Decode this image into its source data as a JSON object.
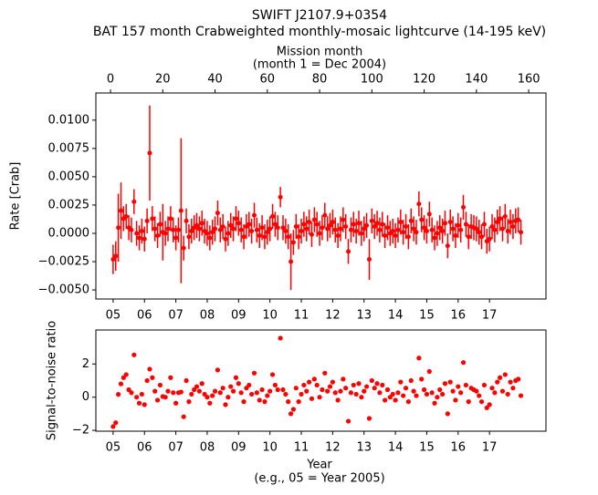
{
  "chart_data": [
    {
      "type": "errorbar",
      "title": [
        "SWIFT J2107.9+0354",
        "BAT 157 month Crabweighted monthly-mosaic lightcurve (14-195 keV)"
      ],
      "x2label": [
        "Mission month",
        "(month 1 = Dec 2004)"
      ],
      "ylabel": "Rate [Crab]",
      "color": "#ff0000",
      "x": [
        1,
        2,
        3,
        4,
        5,
        6,
        7,
        8,
        9,
        10,
        11,
        12,
        13,
        14,
        15,
        16,
        17,
        18,
        19,
        20,
        21,
        22,
        23,
        24,
        25,
        26,
        27,
        28,
        29,
        30,
        31,
        32,
        33,
        34,
        35,
        36,
        37,
        38,
        39,
        40,
        41,
        42,
        43,
        44,
        45,
        46,
        47,
        48,
        49,
        50,
        51,
        52,
        53,
        54,
        55,
        56,
        57,
        58,
        59,
        60,
        61,
        62,
        63,
        64,
        65,
        66,
        67,
        68,
        69,
        70,
        71,
        72,
        73,
        74,
        75,
        76,
        77,
        78,
        79,
        80,
        81,
        82,
        83,
        84,
        85,
        86,
        87,
        88,
        89,
        90,
        91,
        92,
        93,
        94,
        95,
        96,
        97,
        98,
        99,
        100,
        101,
        102,
        103,
        104,
        105,
        106,
        107,
        108,
        109,
        110,
        111,
        112,
        113,
        114,
        115,
        116,
        117,
        118,
        119,
        120,
        121,
        122,
        123,
        124,
        125,
        126,
        127,
        128,
        129,
        130,
        131,
        132,
        133,
        134,
        135,
        136,
        137,
        138,
        139,
        140,
        141,
        142,
        143,
        144,
        145,
        146,
        147,
        148,
        149,
        150,
        151,
        152,
        153,
        154,
        155,
        156,
        157
      ],
      "values": [
        -0.0023,
        -0.002,
        0.0005,
        0.002,
        0.0013,
        0.0015,
        0.0005,
        0.0003,
        0.0028,
        0.0,
        -0.0004,
        0.0002,
        -0.0005,
        0.0011,
        0.0071,
        0.0013,
        0.0004,
        -0.0002,
        0.0008,
        0.0001,
        0.0,
        0.0004,
        0.0013,
        0.0003,
        -0.0004,
        0.0003,
        0.002,
        -0.0013,
        0.0011,
        -0.0003,
        0.0002,
        0.0005,
        0.0007,
        0.0004,
        0.0009,
        0.0002,
        0.0,
        -0.0004,
        0.0001,
        0.0004,
        0.0018,
        0.0003,
        0.0006,
        -0.0005,
        0.0,
        0.0007,
        0.0004,
        0.0013,
        0.0009,
        0.0003,
        -0.0003,
        0.0006,
        0.0008,
        0.0002,
        0.0016,
        0.0003,
        -0.0002,
        0.0005,
        -0.0003,
        0.0001,
        0.0004,
        0.0015,
        0.0008,
        0.0005,
        0.0032,
        0.0005,
        0.0002,
        -0.0003,
        -0.0025,
        -0.0008,
        0.0006,
        -0.0003,
        0.0002,
        0.0008,
        0.0004,
        0.001,
        -0.0001,
        0.0012,
        0.0008,
        0.0,
        0.0005,
        0.0016,
        0.0004,
        0.0007,
        0.001,
        0.0003,
        -0.0002,
        0.0004,
        0.0012,
        0.0006,
        -0.0016,
        0.0003,
        0.0008,
        0.0002,
        0.0009,
        0.0,
        0.0004,
        0.0007,
        -0.0023,
        0.0011,
        0.0006,
        0.0009,
        0.0003,
        0.0008,
        -0.0002,
        0.0005,
        0.0,
        0.0002,
        -0.0002,
        0.0003,
        0.001,
        0.0001,
        0.0006,
        -0.0003,
        0.0011,
        0.0004,
        0.0001,
        0.0026,
        0.0012,
        0.0005,
        0.0002,
        0.0017,
        0.0003,
        -0.0004,
        0.0,
        0.0005,
        0.0002,
        0.0009,
        -0.0011,
        0.001,
        0.0004,
        -0.0002,
        0.0007,
        0.0003,
        0.0023,
        0.0008,
        -0.0003,
        0.0006,
        0.0005,
        0.0004,
        0.0001,
        -0.0003,
        0.0008,
        -0.0007,
        -0.0005,
        0.0006,
        0.0003,
        0.001,
        0.0013,
        0.0004,
        0.0015,
        0.0002,
        0.001,
        0.0006,
        0.0011,
        0.0012,
        0.0001
      ],
      "errors": [
        0.0013,
        0.0013,
        0.003,
        0.0025,
        0.0011,
        0.0011,
        0.0011,
        0.0011,
        0.0011,
        0.0011,
        0.0011,
        0.0011,
        0.0011,
        0.0011,
        0.0042,
        0.0011,
        0.0011,
        0.0011,
        0.0011,
        0.0025,
        0.0011,
        0.0011,
        0.0011,
        0.0011,
        0.0011,
        0.0011,
        0.0064,
        0.0011,
        0.0011,
        0.0011,
        0.0011,
        0.0011,
        0.0011,
        0.0011,
        0.0011,
        0.0011,
        0.0011,
        0.0011,
        0.0011,
        0.0011,
        0.0011,
        0.0011,
        0.0011,
        0.0011,
        0.0011,
        0.0011,
        0.0011,
        0.0011,
        0.0011,
        0.0011,
        0.0011,
        0.0011,
        0.0011,
        0.0011,
        0.0011,
        0.0011,
        0.0011,
        0.0011,
        0.0011,
        0.0011,
        0.0011,
        0.0011,
        0.0011,
        0.0011,
        0.0009,
        0.0011,
        0.0011,
        0.0011,
        0.0025,
        0.0011,
        0.0011,
        0.0011,
        0.0011,
        0.0011,
        0.0011,
        0.0011,
        0.0011,
        0.0011,
        0.0011,
        0.0011,
        0.0011,
        0.0011,
        0.0011,
        0.0011,
        0.0011,
        0.0011,
        0.0011,
        0.0011,
        0.0011,
        0.0011,
        0.0011,
        0.0011,
        0.0011,
        0.0011,
        0.0011,
        0.0011,
        0.0011,
        0.0011,
        0.0018,
        0.0011,
        0.0011,
        0.0011,
        0.0011,
        0.0011,
        0.0011,
        0.0011,
        0.0011,
        0.0011,
        0.0011,
        0.0011,
        0.0011,
        0.0011,
        0.0011,
        0.0011,
        0.0011,
        0.0011,
        0.0011,
        0.0011,
        0.0011,
        0.0011,
        0.0011,
        0.0011,
        0.0011,
        0.0011,
        0.0011,
        0.0011,
        0.0011,
        0.0011,
        0.0011,
        0.0011,
        0.0011,
        0.0011,
        0.0011,
        0.0011,
        0.0011,
        0.0011,
        0.0011,
        0.0011,
        0.0011,
        0.0011,
        0.0011,
        0.0011,
        0.0011,
        0.0011,
        0.0011,
        0.0011,
        0.0011,
        0.0011,
        0.0011,
        0.0011,
        0.0011,
        0.0011,
        0.0011,
        0.0011,
        0.0011,
        0.0011,
        0.0011
      ],
      "xlim": [
        -5.6,
        166.6
      ],
      "ylim": [
        -0.0058,
        0.0124
      ],
      "yticks": [
        {
          "value": -0.005,
          "label": "−0.0050"
        },
        {
          "value": -0.0025,
          "label": "−0.0025"
        },
        {
          "value": 0,
          "label": "0.0000"
        },
        {
          "value": 0.0025,
          "label": "0.0025"
        },
        {
          "value": 0.005,
          "label": "0.0050"
        },
        {
          "value": 0.0075,
          "label": "0.0075"
        },
        {
          "value": 0.01,
          "label": "0.0100"
        }
      ],
      "x2ticks": [
        0,
        20,
        40,
        60,
        80,
        100,
        120,
        140,
        160
      ],
      "xticks": [
        {
          "value": 1,
          "label": "05"
        },
        {
          "value": 13,
          "label": "06"
        },
        {
          "value": 25,
          "label": "07"
        },
        {
          "value": 37,
          "label": "08"
        },
        {
          "value": 49,
          "label": "09"
        },
        {
          "value": 61,
          "label": "10"
        },
        {
          "value": 73,
          "label": "11"
        },
        {
          "value": 85,
          "label": "12"
        },
        {
          "value": 97,
          "label": "13"
        },
        {
          "value": 109,
          "label": "14"
        },
        {
          "value": 121,
          "label": "15"
        },
        {
          "value": 133,
          "label": "16"
        },
        {
          "value": 145,
          "label": "17"
        }
      ]
    },
    {
      "type": "scatter",
      "xlabel": [
        "Year",
        "(e.g., 05 = Year 2005)"
      ],
      "ylabel": "Signal-to-noise ratio",
      "color": "#ff0000",
      "x": [
        1,
        2,
        3,
        4,
        5,
        6,
        7,
        8,
        9,
        10,
        11,
        12,
        13,
        14,
        15,
        16,
        17,
        18,
        19,
        20,
        21,
        22,
        23,
        24,
        25,
        26,
        27,
        28,
        29,
        30,
        31,
        32,
        33,
        34,
        35,
        36,
        37,
        38,
        39,
        40,
        41,
        42,
        43,
        44,
        45,
        46,
        47,
        48,
        49,
        50,
        51,
        52,
        53,
        54,
        55,
        56,
        57,
        58,
        59,
        60,
        61,
        62,
        63,
        64,
        65,
        66,
        67,
        68,
        69,
        70,
        71,
        72,
        73,
        74,
        75,
        76,
        77,
        78,
        79,
        80,
        81,
        82,
        83,
        84,
        85,
        86,
        87,
        88,
        89,
        90,
        91,
        92,
        93,
        94,
        95,
        96,
        97,
        98,
        99,
        100,
        101,
        102,
        103,
        104,
        105,
        106,
        107,
        108,
        109,
        110,
        111,
        112,
        113,
        114,
        115,
        116,
        117,
        118,
        119,
        120,
        121,
        122,
        123,
        124,
        125,
        126,
        127,
        128,
        129,
        130,
        131,
        132,
        133,
        134,
        135,
        136,
        137,
        138,
        139,
        140,
        141,
        142,
        143,
        144,
        145,
        146,
        147,
        148,
        149,
        150,
        151,
        152,
        153,
        154,
        155,
        156,
        157
      ],
      "values": [
        -1.77,
        -1.54,
        0.17,
        0.8,
        1.18,
        1.36,
        0.45,
        0.27,
        2.55,
        0.0,
        -0.36,
        0.18,
        -0.45,
        1.0,
        1.69,
        1.18,
        0.36,
        -0.18,
        0.73,
        0.04,
        0.0,
        0.36,
        1.18,
        0.27,
        -0.36,
        0.27,
        0.31,
        -1.18,
        1.0,
        -0.27,
        0.18,
        0.45,
        0.64,
        0.36,
        0.82,
        0.18,
        0.0,
        -0.36,
        0.09,
        0.36,
        1.64,
        0.27,
        0.55,
        -0.45,
        0.0,
        0.64,
        0.36,
        1.18,
        0.82,
        0.27,
        -0.27,
        0.55,
        0.73,
        0.18,
        1.45,
        0.27,
        -0.18,
        0.45,
        -0.27,
        0.09,
        0.36,
        1.36,
        0.73,
        0.45,
        3.56,
        0.45,
        0.18,
        -0.27,
        -1.0,
        -0.73,
        0.55,
        -0.27,
        0.18,
        0.73,
        0.36,
        0.91,
        -0.09,
        1.09,
        0.73,
        0.0,
        0.45,
        1.45,
        0.36,
        0.64,
        0.91,
        0.27,
        -0.18,
        0.36,
        1.09,
        0.55,
        -1.45,
        0.27,
        0.73,
        0.18,
        0.82,
        0.0,
        0.36,
        0.64,
        -1.28,
        1.0,
        0.55,
        0.82,
        0.27,
        0.73,
        -0.18,
        0.45,
        0.0,
        0.18,
        -0.18,
        0.27,
        0.91,
        0.09,
        0.55,
        -0.27,
        1.0,
        0.36,
        0.09,
        2.36,
        1.09,
        0.45,
        0.18,
        1.55,
        0.27,
        -0.36,
        0.0,
        0.45,
        0.18,
        0.82,
        -1.0,
        0.91,
        0.36,
        -0.18,
        0.64,
        0.27,
        2.09,
        0.73,
        -0.27,
        0.55,
        0.45,
        0.36,
        0.09,
        -0.27,
        0.73,
        -0.64,
        -0.45,
        0.55,
        0.27,
        0.91,
        1.18,
        0.36,
        1.36,
        0.18,
        0.91,
        0.55,
        1.0,
        1.09,
        0.09
      ],
      "xlim": [
        -5.6,
        166.6
      ],
      "ylim": [
        -2.05,
        4.05
      ],
      "yticks": [
        {
          "value": -2,
          "label": "−2"
        },
        0,
        2
      ],
      "xticks": [
        {
          "value": 1,
          "label": "05"
        },
        {
          "value": 13,
          "label": "06"
        },
        {
          "value": 25,
          "label": "07"
        },
        {
          "value": 37,
          "label": "08"
        },
        {
          "value": 49,
          "label": "09"
        },
        {
          "value": 61,
          "label": "10"
        },
        {
          "value": 73,
          "label": "11"
        },
        {
          "value": 85,
          "label": "12"
        },
        {
          "value": 97,
          "label": "13"
        },
        {
          "value": 109,
          "label": "14"
        },
        {
          "value": 121,
          "label": "15"
        },
        {
          "value": 133,
          "label": "16"
        },
        {
          "value": 145,
          "label": "17"
        }
      ]
    }
  ]
}
